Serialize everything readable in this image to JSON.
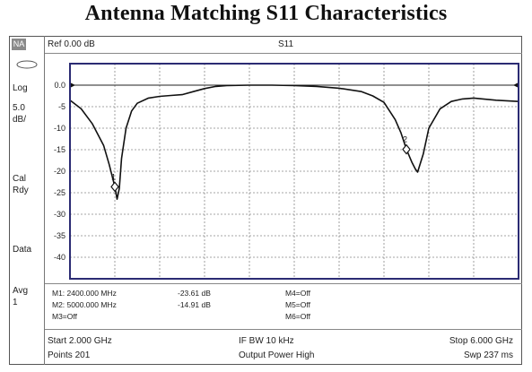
{
  "title": "Antenna Matching S11 Characteristics",
  "side_panel": {
    "badge": "NA",
    "format": "Log",
    "scale": "5.0\ndB/",
    "cal": "Cal\nRdy",
    "mode": "Data",
    "avg": "Avg\n1"
  },
  "header": {
    "ref": "Ref 0.00 dB",
    "trace": "S11"
  },
  "markers": {
    "m1": {
      "label": "M1: 2400.000 MHz",
      "value": "-23.61 dB"
    },
    "m2": {
      "label": "M2: 5000.000 MHz",
      "value": "-14.91 dB"
    },
    "m3": "M3=Off",
    "m4": "M4=Off",
    "m5": "M5=Off",
    "m6": "M6=Off"
  },
  "footer": {
    "start": "Start 2.000 GHz",
    "points": "Points 201",
    "ifbw": "IF BW 10 kHz",
    "power": "Output Power High",
    "stop": "Stop 6.000 GHz",
    "sweep": "Swp 237 ms"
  },
  "colors": {
    "plot_border": "#2b2b73",
    "trace": "#111111",
    "grid": "#888888"
  },
  "chart_data": {
    "type": "line",
    "title": "Antenna Matching S11 Characteristics",
    "xlabel": "",
    "ylabel": "",
    "x_unit": "GHz",
    "y_unit": "dB",
    "xlim": [
      2.0,
      6.0
    ],
    "ylim": [
      -45,
      5
    ],
    "yticks": [
      0,
      -5,
      -10,
      -15,
      -20,
      -25,
      -30,
      -35,
      -40
    ],
    "ytick_labels": [
      "0.0",
      "-5",
      "-10",
      "-15",
      "-20",
      "-25",
      "-30",
      "-35",
      "-40"
    ],
    "x_divisions": 10,
    "grid": true,
    "reference_level": 0,
    "series": [
      {
        "x": [
          2.0,
          2.1,
          2.2,
          2.3,
          2.35,
          2.4,
          2.42,
          2.44,
          2.46,
          2.5,
          2.55,
          2.6,
          2.7,
          2.8,
          2.9,
          3.0,
          3.1,
          3.2,
          3.3,
          3.4,
          3.6,
          3.8,
          4.0,
          4.2,
          4.4,
          4.6,
          4.7,
          4.8,
          4.9,
          4.95,
          5.0,
          5.05,
          5.08,
          5.1,
          5.15,
          5.2,
          5.3,
          5.4,
          5.5,
          5.6,
          5.8,
          6.0
        ],
        "y": [
          -3.5,
          -5.5,
          -9,
          -14,
          -18.5,
          -23.6,
          -26.5,
          -24,
          -17,
          -10,
          -6,
          -4.2,
          -3,
          -2.6,
          -2.4,
          -2.2,
          -1.5,
          -0.8,
          -0.3,
          -0.1,
          0,
          0,
          -0.1,
          -0.3,
          -0.7,
          -1.5,
          -2.5,
          -4,
          -8,
          -11,
          -14.9,
          -18,
          -19.5,
          -20.2,
          -16,
          -10,
          -5.5,
          -3.8,
          -3.2,
          -3,
          -3.5,
          -3.8
        ]
      }
    ],
    "markers": [
      {
        "name": "1",
        "x": 2.4,
        "y": -23.61
      },
      {
        "name": "2",
        "x": 5.0,
        "y": -14.91
      }
    ]
  }
}
